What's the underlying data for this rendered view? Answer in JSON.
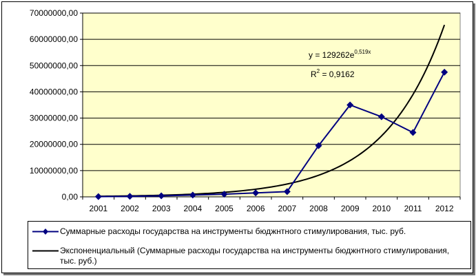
{
  "chart_data": {
    "type": "line",
    "x": [
      "2001",
      "2002",
      "2003",
      "2004",
      "2005",
      "2006",
      "2007",
      "2008",
      "2009",
      "2010",
      "2011",
      "2012"
    ],
    "series": [
      {
        "name": "Суммарные расходы государства на инструменты бюджнтного стимулирования, тыс. руб.",
        "color": "#000080",
        "marker": "diamond",
        "values": [
          100000,
          200000,
          400000,
          700000,
          1000000,
          1500000,
          2000000,
          19500000,
          35000000,
          30500000,
          24500000,
          47500000
        ]
      }
    ],
    "trendline": {
      "type": "exponential",
      "name": "Экспоненциальный (Суммарные расходы государства на инструменты бюджнтного стимулирования, тыс. руб.)",
      "color": "#000000",
      "a": 129262,
      "b": 0.519,
      "equation_text": "y = 129262e",
      "equation_exponent": "0,519x",
      "r2_text": "R",
      "r2_exponent": "2",
      "r2_value_text": " = 0,9162"
    },
    "ylim": [
      0,
      70000000
    ],
    "y_ticks": [
      "0,00",
      "10000000,00",
      "20000000,00",
      "30000000,00",
      "40000000,00",
      "50000000,00",
      "60000000,00",
      "70000000,00"
    ],
    "plot_background": "#ffffcc",
    "grid": true,
    "legend_position": "bottom"
  }
}
